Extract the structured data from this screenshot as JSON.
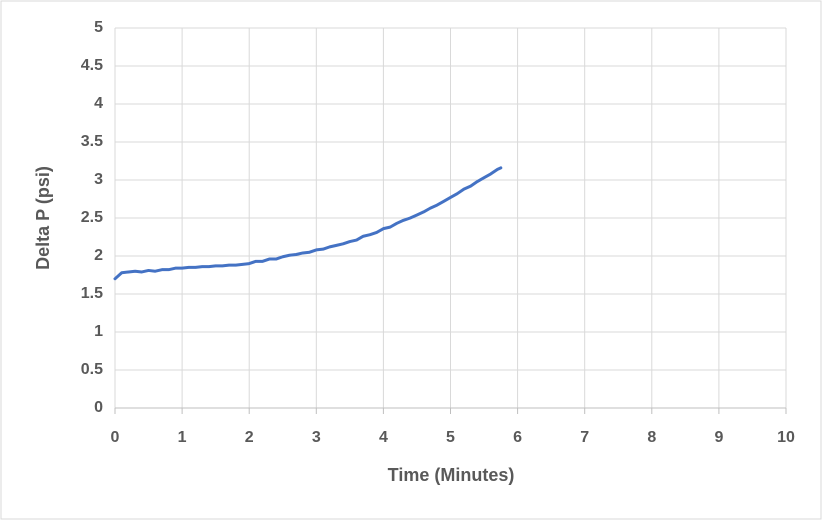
{
  "chart_data": {
    "type": "line",
    "x_label": "Time (Minutes)",
    "y_label": "Delta P (psi)",
    "x": [
      0,
      0.1,
      0.2,
      0.3,
      0.4,
      0.5,
      0.6,
      0.7,
      0.8,
      0.9,
      1.0,
      1.1,
      1.2,
      1.3,
      1.4,
      1.5,
      1.6,
      1.7,
      1.8,
      1.9,
      2.0,
      2.1,
      2.2,
      2.3,
      2.4,
      2.5,
      2.6,
      2.7,
      2.8,
      2.9,
      3.0,
      3.1,
      3.2,
      3.3,
      3.4,
      3.5,
      3.6,
      3.7,
      3.8,
      3.9,
      4.0,
      4.1,
      4.2,
      4.3,
      4.4,
      4.5,
      4.6,
      4.7,
      4.8,
      4.9,
      5.0,
      5.1,
      5.2,
      5.3,
      5.4,
      5.5,
      5.6,
      5.7,
      5.75
    ],
    "values": [
      1.7,
      1.78,
      1.79,
      1.8,
      1.79,
      1.81,
      1.8,
      1.82,
      1.82,
      1.84,
      1.84,
      1.85,
      1.85,
      1.86,
      1.86,
      1.87,
      1.87,
      1.88,
      1.88,
      1.89,
      1.9,
      1.93,
      1.93,
      1.96,
      1.96,
      1.99,
      2.01,
      2.02,
      2.04,
      2.05,
      2.08,
      2.09,
      2.12,
      2.14,
      2.16,
      2.19,
      2.21,
      2.26,
      2.28,
      2.31,
      2.36,
      2.38,
      2.43,
      2.47,
      2.5,
      2.54,
      2.58,
      2.63,
      2.67,
      2.72,
      2.77,
      2.82,
      2.88,
      2.92,
      2.98,
      3.03,
      3.08,
      3.14,
      3.16
    ],
    "color": "#4472c4",
    "xlim": [
      0,
      10
    ],
    "xticks": [
      0,
      1,
      2,
      3,
      4,
      5,
      6,
      7,
      8,
      9,
      10
    ],
    "ylim": [
      0,
      5
    ],
    "yticks": [
      0,
      0.5,
      1,
      1.5,
      2,
      2.5,
      3,
      3.5,
      4,
      4.5,
      5
    ],
    "grid": true
  }
}
